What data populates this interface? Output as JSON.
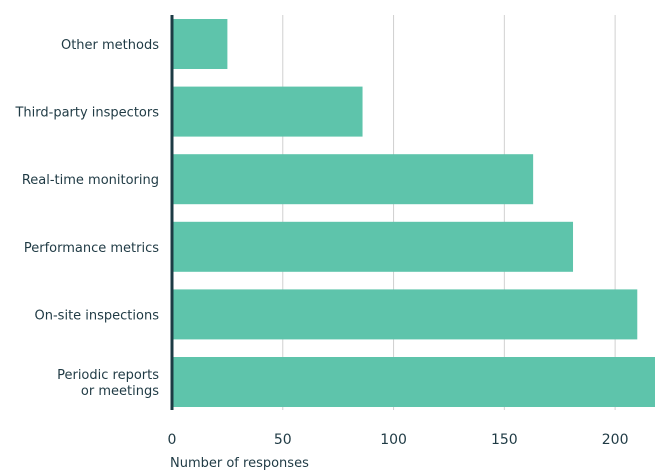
{
  "chart_data": {
    "type": "bar",
    "orientation": "horizontal",
    "categories": [
      "Other methods",
      "Third-party inspectors",
      "Real-time monitoring",
      "Performance metrics",
      "On-site inspections",
      "Periodic reports or meetings"
    ],
    "category_label_lines": [
      [
        "Other methods"
      ],
      [
        "Third-party inspectors"
      ],
      [
        "Real-time monitoring"
      ],
      [
        "Performance metrics"
      ],
      [
        "On-site inspections"
      ],
      [
        "Periodic reports",
        "or meetings"
      ]
    ],
    "values": [
      25,
      86,
      163,
      181,
      210,
      218
    ],
    "xlim": [
      0,
      218
    ],
    "xticks": [
      0,
      50,
      100,
      150,
      200
    ],
    "xlabel": "Number of responses",
    "ylabel": "",
    "title": "",
    "grid": "vertical",
    "legend": "none",
    "colors": {
      "bar": "#5ec4ab",
      "axis": "#1c3b44",
      "grid": "#d0d0d0",
      "text": "#1f3a44"
    }
  }
}
